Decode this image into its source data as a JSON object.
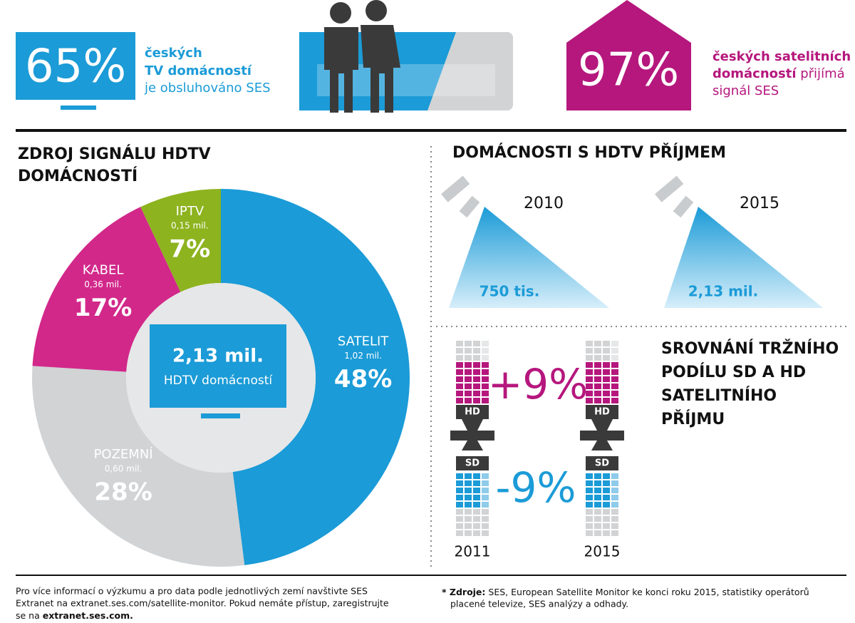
{
  "header": {
    "left": {
      "figure": "65%",
      "lines": [
        "českých",
        "TV domácností",
        "je obsluhováno SES"
      ]
    },
    "right": {
      "figure": "97%",
      "lines": [
        "českých satelitních",
        "domácností",
        "přijímá",
        "signál SES"
      ]
    }
  },
  "chart_data": {
    "type": "donut",
    "title_lines": [
      "ZDROJ SIGNÁLU HDTV",
      "DOMÁCNOSTÍ"
    ],
    "categories": [
      "SATELIT",
      "POZEMNÍ",
      "KABEL",
      "IPTV"
    ],
    "sublabels": [
      "1,02 mil.",
      "0,60 mil.",
      "0,36 mil.",
      "0,15 mil."
    ],
    "values": [
      48,
      28,
      17,
      7
    ],
    "value_labels": [
      "48%",
      "28%",
      "17%",
      "7%"
    ],
    "colors": [
      "#1b9bd7",
      "#d1d3d5",
      "#d2288a",
      "#8db31f"
    ],
    "center": {
      "value": "2,13 mil.",
      "label": "HDTV domácností"
    }
  },
  "hdtv_households": {
    "title": "DOMÁCNOSTI S HDTV PŘÍJMEM",
    "items": [
      {
        "year": "2010",
        "value": "750 tis."
      },
      {
        "year": "2015",
        "value": "2,13 mil."
      }
    ]
  },
  "market_share": {
    "title_lines": [
      "SROVNÁNÍ TRŽNÍHO",
      "PODÍLU SD A HD",
      "SATELITNÍHO",
      "PŘÍJMU"
    ],
    "hd_change": "+9%",
    "sd_change": "-9%",
    "hd": "HD",
    "sd": "SD",
    "years": [
      "2011",
      "2015"
    ]
  },
  "footer": {
    "left_lines": [
      "Pro více informací o výzkumu a pro data podle jednotlivých zemí navštivte SES",
      "Extranet na extranet.ses.com/satellite-monitor. Pokud nemáte přístup, zaregistrujte",
      "se na",
      "extranet.ses.com."
    ],
    "right_label": "* Zdroje:",
    "right_lines": [
      "SES, European Satellite Monitor ke konci roku 2015, statistiky operátorů",
      "placené televize, SES analýzy a odhady."
    ]
  }
}
